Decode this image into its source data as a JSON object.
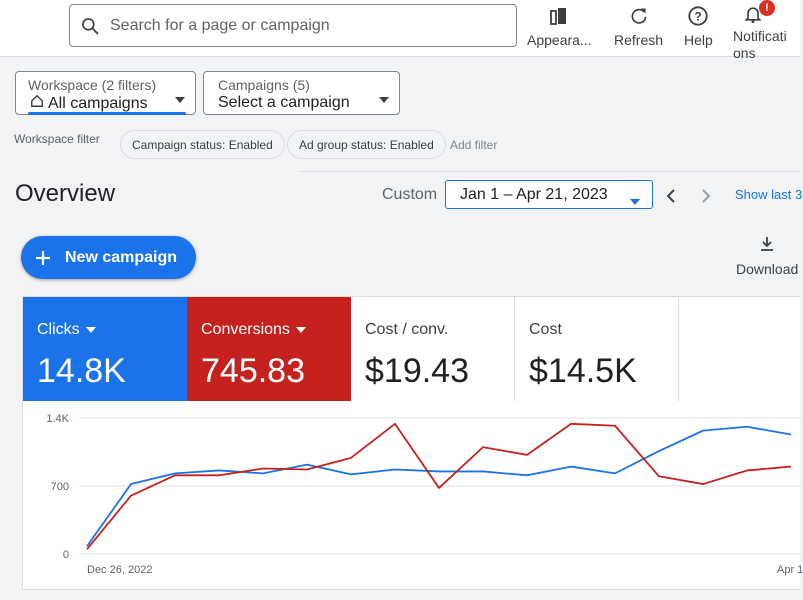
{
  "search": {
    "placeholder": "Search for a page or campaign"
  },
  "toolbar": {
    "appearance": "Appearа...",
    "refresh": "Refresh",
    "help": "Help",
    "notifications": "Notificati ons",
    "notification_badge": "!"
  },
  "filters": {
    "workspace_label": "Workspace (2 filters)",
    "workspace_value": "All campaigns",
    "campaigns_label": "Campaigns (5)",
    "campaigns_value": "Select a campaign",
    "workspace_filter_label": "Workspace filter",
    "chips": [
      "Campaign status: Enabled",
      "Ad group status: Enabled"
    ],
    "add_filter": "Add filter"
  },
  "overview": {
    "title": "Overview",
    "range_type": "Custom",
    "date_range": "Jan 1 – Apr 21, 2023",
    "show_last": "Show last 3",
    "new_campaign": "New campaign",
    "download": "Download"
  },
  "metrics": {
    "clicks": {
      "label": "Clicks",
      "value": "14.8K",
      "color": "#1a73e8"
    },
    "conversions": {
      "label": "Conversions",
      "value": "745.83",
      "color": "#c5221f"
    },
    "cost_conv": {
      "label": "Cost / conv.",
      "value": "$19.43"
    },
    "cost": {
      "label": "Cost",
      "value": "$14.5K"
    }
  },
  "chart_data": {
    "type": "line",
    "x_start_label": "Dec 26, 2022",
    "x_end_label": "Apr 1",
    "y_ticks": [
      "0",
      "700",
      "1.4K"
    ],
    "ylim": [
      0,
      1400
    ],
    "grid": true,
    "series": [
      {
        "name": "Clicks",
        "color": "#1a73e8",
        "values": [
          80,
          720,
          830,
          860,
          830,
          920,
          820,
          870,
          850,
          850,
          810,
          900,
          830,
          1060,
          1270,
          1310,
          1230
        ]
      },
      {
        "name": "Conversions",
        "color": "#c5221f",
        "values": [
          50,
          600,
          810,
          810,
          880,
          870,
          990,
          1340,
          680,
          1100,
          1020,
          1340,
          1320,
          800,
          720,
          860,
          900
        ]
      }
    ]
  }
}
